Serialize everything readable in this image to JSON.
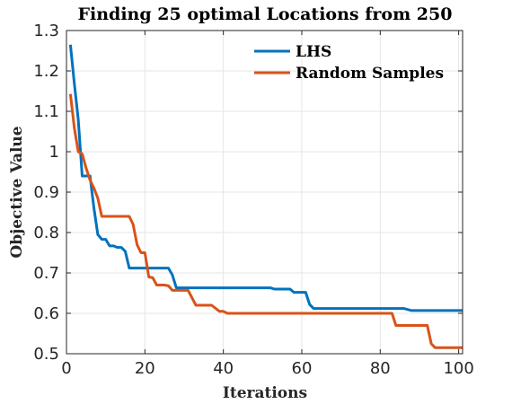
{
  "chart_data": {
    "type": "line",
    "title": "Finding 25 optimal Locations from 250",
    "xlabel": "Iterations",
    "ylabel": "Objective Value",
    "xlim": [
      0,
      101
    ],
    "ylim": [
      0.5,
      1.3
    ],
    "xticks": [
      0,
      20,
      40,
      60,
      80,
      100
    ],
    "yticks": [
      0.5,
      0.6,
      0.7,
      0.8,
      0.9,
      1,
      1.1,
      1.2,
      1.3
    ],
    "grid": true,
    "legend_position": "top-right",
    "series": [
      {
        "name": "LHS",
        "color": "#0072bd",
        "points": [
          [
            1,
            1.265
          ],
          [
            2,
            1.17
          ],
          [
            3,
            1.08
          ],
          [
            4,
            0.94
          ],
          [
            5,
            0.94
          ],
          [
            6,
            0.94
          ],
          [
            7,
            0.86
          ],
          [
            8,
            0.795
          ],
          [
            9,
            0.783
          ],
          [
            10,
            0.783
          ],
          [
            11,
            0.767
          ],
          [
            12,
            0.767
          ],
          [
            13,
            0.763
          ],
          [
            14,
            0.763
          ],
          [
            15,
            0.753
          ],
          [
            16,
            0.712
          ],
          [
            17,
            0.712
          ],
          [
            25,
            0.712
          ],
          [
            26,
            0.712
          ],
          [
            27,
            0.695
          ],
          [
            28,
            0.663
          ],
          [
            52,
            0.663
          ],
          [
            53,
            0.66
          ],
          [
            57,
            0.66
          ],
          [
            58,
            0.652
          ],
          [
            61,
            0.652
          ],
          [
            62,
            0.622
          ],
          [
            63,
            0.612
          ],
          [
            86,
            0.612
          ],
          [
            88,
            0.607
          ],
          [
            101,
            0.607
          ]
        ]
      },
      {
        "name": "Random Samples",
        "color": "#d95319",
        "points": [
          [
            1,
            1.143
          ],
          [
            2,
            1.06
          ],
          [
            3,
            1.0
          ],
          [
            4,
            0.995
          ],
          [
            5,
            0.96
          ],
          [
            6,
            0.93
          ],
          [
            7,
            0.91
          ],
          [
            8,
            0.885
          ],
          [
            9,
            0.84
          ],
          [
            16,
            0.84
          ],
          [
            17,
            0.82
          ],
          [
            18,
            0.77
          ],
          [
            19,
            0.75
          ],
          [
            20,
            0.75
          ],
          [
            21,
            0.69
          ],
          [
            22,
            0.688
          ],
          [
            23,
            0.67
          ],
          [
            25,
            0.67
          ],
          [
            26,
            0.668
          ],
          [
            27,
            0.657
          ],
          [
            31,
            0.657
          ],
          [
            33,
            0.62
          ],
          [
            37,
            0.62
          ],
          [
            39,
            0.605
          ],
          [
            40,
            0.605
          ],
          [
            41,
            0.6
          ],
          [
            83,
            0.6
          ],
          [
            84,
            0.57
          ],
          [
            92,
            0.57
          ],
          [
            93,
            0.525
          ],
          [
            94,
            0.515
          ],
          [
            101,
            0.515
          ]
        ]
      }
    ]
  }
}
